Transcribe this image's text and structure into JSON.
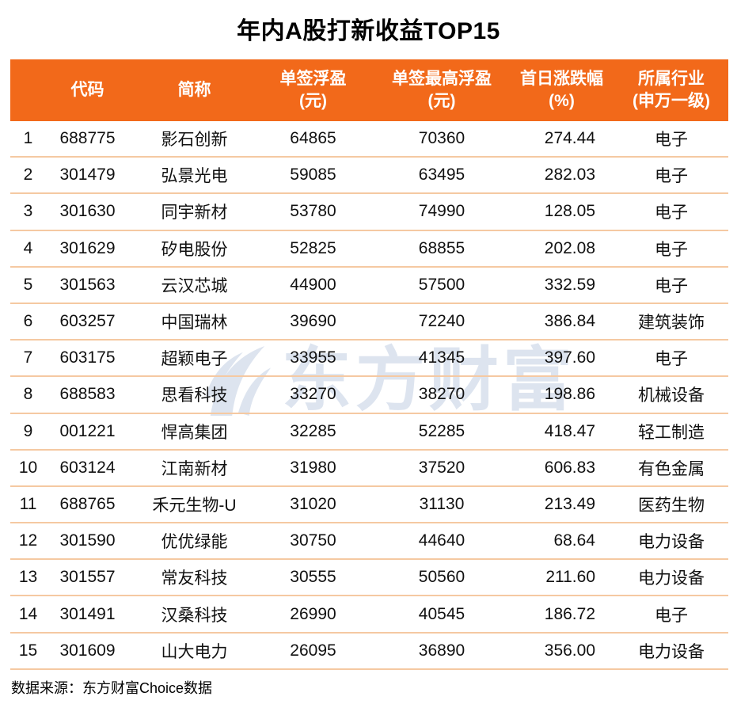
{
  "chart_data": {
    "type": "table",
    "title": "年内A股打新收益TOP15",
    "source": "数据来源：东方财富Choice数据",
    "columns": [
      {
        "key": "rank",
        "label": "",
        "line1": "",
        "line2": ""
      },
      {
        "key": "code",
        "label": "代码",
        "line1": "代码",
        "line2": ""
      },
      {
        "key": "name",
        "label": "简称",
        "line1": "简称",
        "line2": ""
      },
      {
        "key": "profit_per_lot_yuan",
        "label": "单签浮盈(元)",
        "line1": "单签浮盈",
        "line2": "(元)"
      },
      {
        "key": "max_profit_per_lot_yuan",
        "label": "单签最高浮盈(元)",
        "line1": "单签最高浮盈",
        "line2": "(元)"
      },
      {
        "key": "first_day_change_pct",
        "label": "首日涨跌幅(%)",
        "line1": "首日涨跌幅",
        "line2": "(%)"
      },
      {
        "key": "industry_sw_level1",
        "label": "所属行业(申万一级)",
        "line1": "所属行业",
        "line2": "(申万一级)"
      }
    ],
    "rows": [
      [
        "1",
        "688775",
        "影石创新",
        "64865",
        "70360",
        "274.44",
        "电子"
      ],
      [
        "2",
        "301479",
        "弘景光电",
        "59085",
        "63495",
        "282.03",
        "电子"
      ],
      [
        "3",
        "301630",
        "同宇新材",
        "53780",
        "74990",
        "128.05",
        "电子"
      ],
      [
        "4",
        "301629",
        "矽电股份",
        "52825",
        "68855",
        "202.08",
        "电子"
      ],
      [
        "5",
        "301563",
        "云汉芯城",
        "44900",
        "57500",
        "332.59",
        "电子"
      ],
      [
        "6",
        "603257",
        "中国瑞林",
        "39690",
        "72240",
        "386.84",
        "建筑装饰"
      ],
      [
        "7",
        "603175",
        "超颖电子",
        "33955",
        "41345",
        "397.60",
        "电子"
      ],
      [
        "8",
        "688583",
        "思看科技",
        "33270",
        "38270",
        "198.86",
        "机械设备"
      ],
      [
        "9",
        "001221",
        "悍高集团",
        "32285",
        "52285",
        "418.47",
        "轻工制造"
      ],
      [
        "10",
        "603124",
        "江南新材",
        "31980",
        "37520",
        "606.83",
        "有色金属"
      ],
      [
        "11",
        "688765",
        "禾元生物-U",
        "31020",
        "31130",
        "213.49",
        "医药生物"
      ],
      [
        "12",
        "301590",
        "优优绿能",
        "30750",
        "44640",
        "68.64",
        "电力设备"
      ],
      [
        "13",
        "301557",
        "常友科技",
        "30555",
        "50560",
        "211.60",
        "电力设备"
      ],
      [
        "14",
        "301491",
        "汉桑科技",
        "26990",
        "40545",
        "186.72",
        "电子"
      ],
      [
        "15",
        "301609",
        "山大电力",
        "26095",
        "36890",
        "356.00",
        "电力设备"
      ]
    ],
    "layout": {
      "header_two_line": true,
      "numeric_alignment": "first_day_change_pct right-aligned, others centered"
    }
  },
  "watermark": {
    "text": "东方财富",
    "icon": "eastmoney-leaf-icon",
    "color": "#DDE4EF"
  },
  "colors": {
    "header_bg": "#F2691A",
    "header_text": "#FFFFFF",
    "row_divider": "#F5C9A2",
    "body_text": "#111111",
    "title_text": "#000000"
  }
}
